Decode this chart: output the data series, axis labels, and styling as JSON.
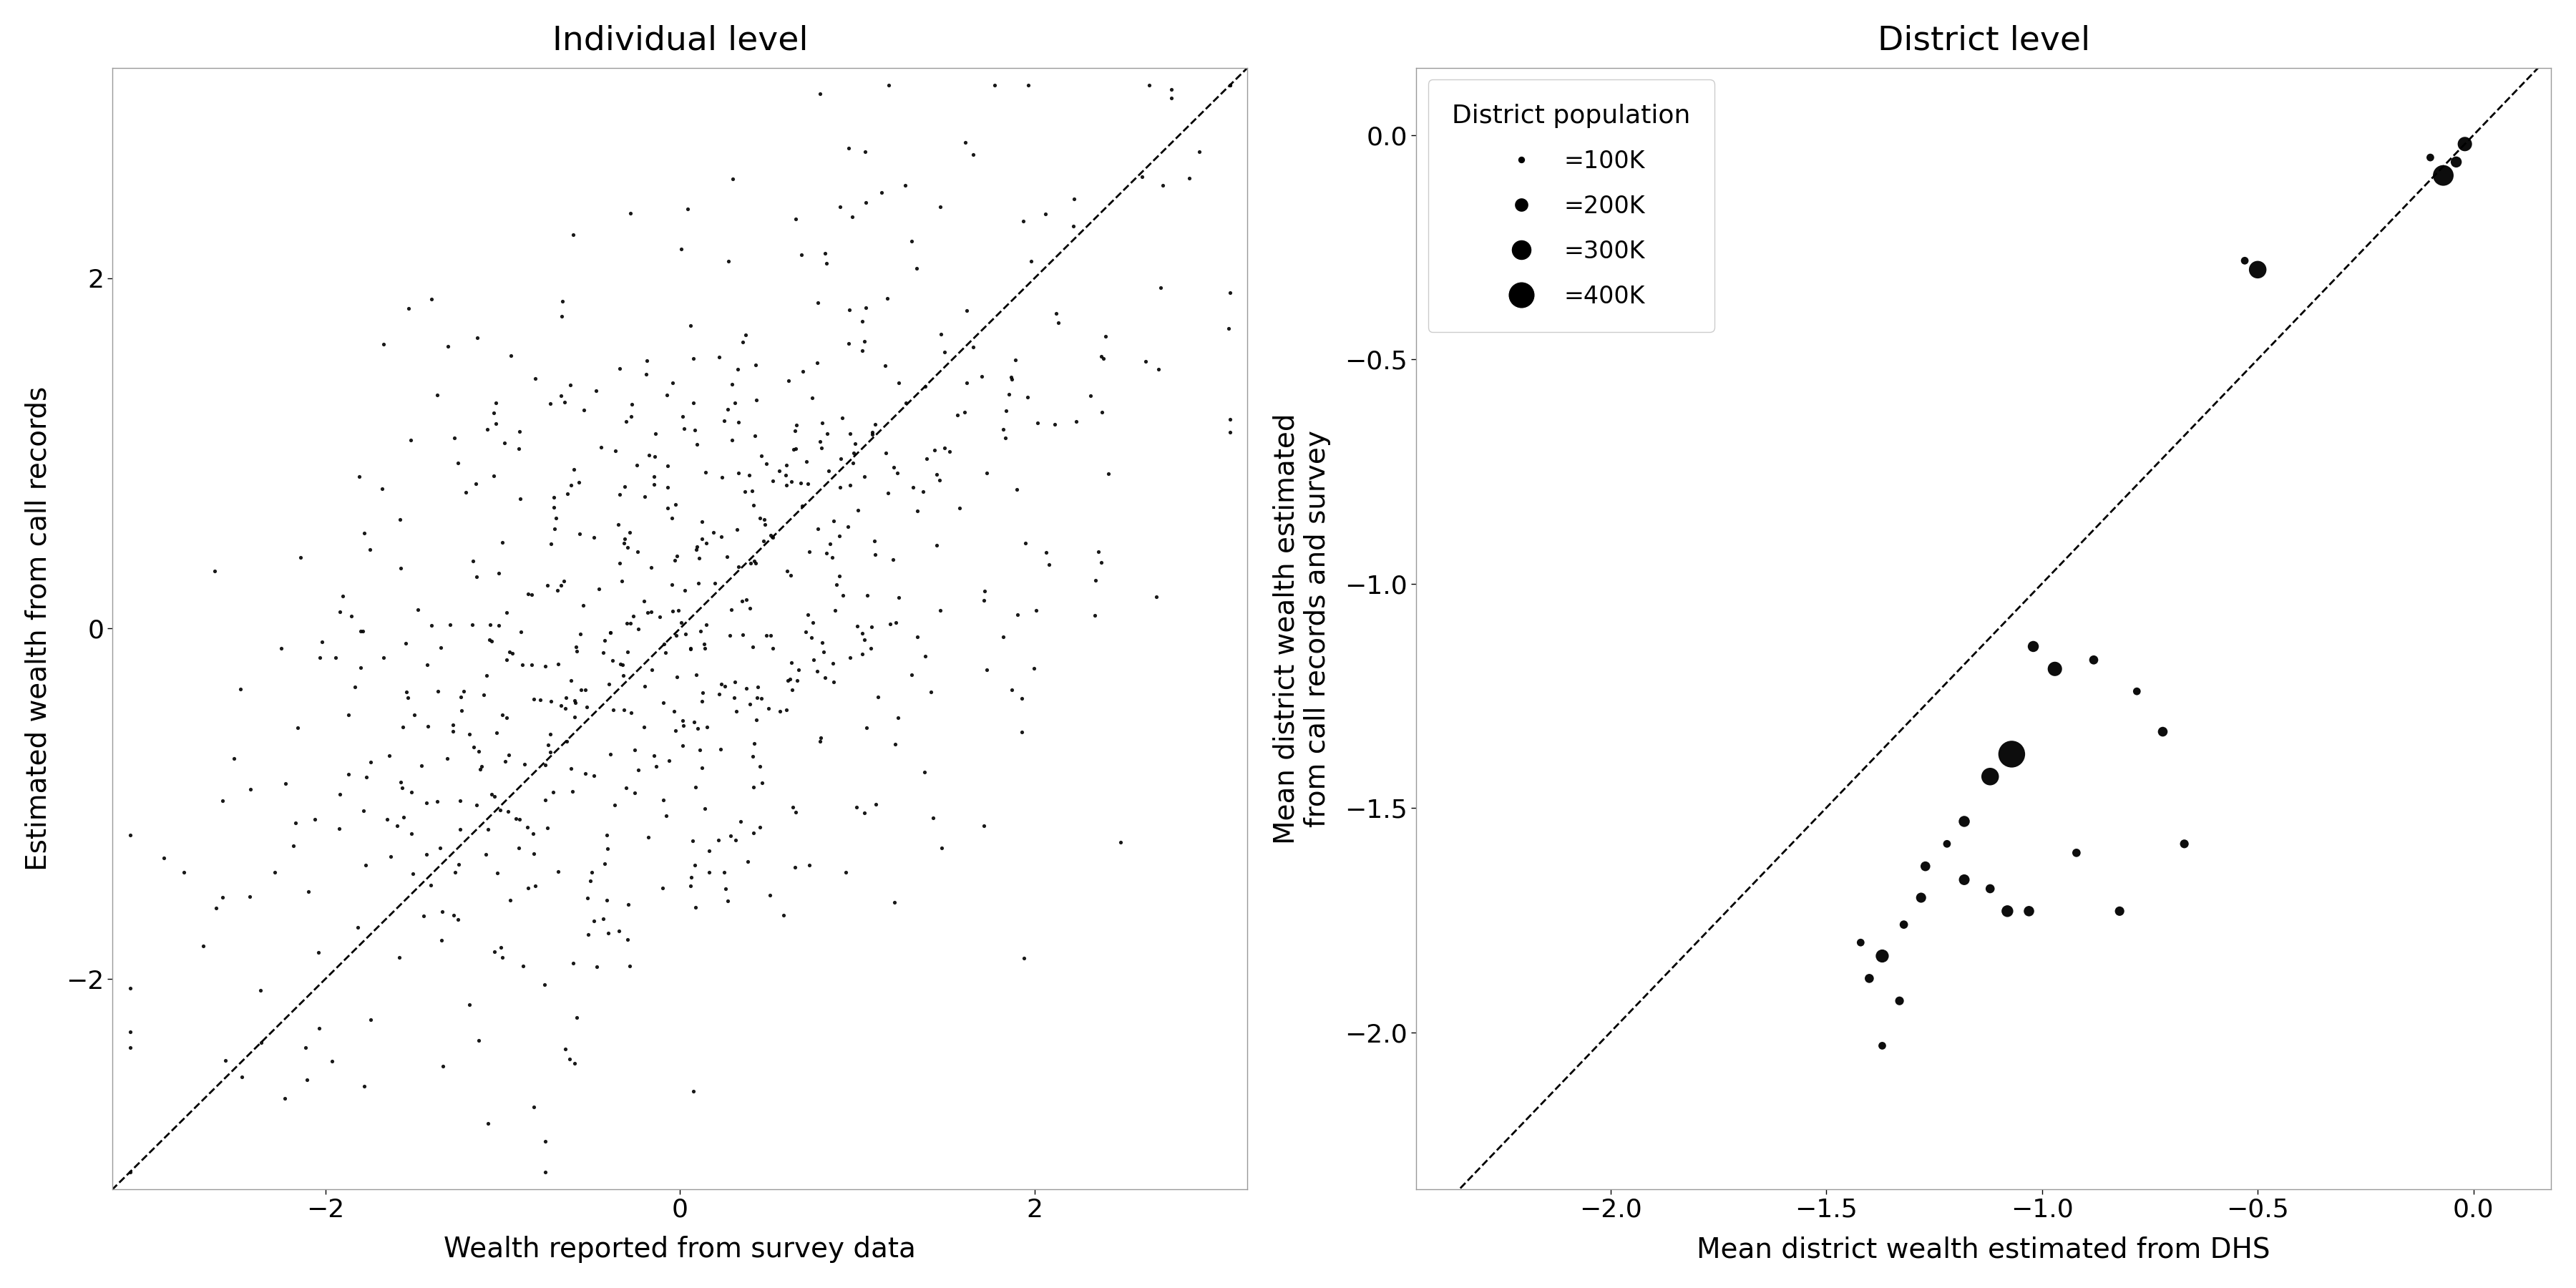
{
  "left_title": "Individual level",
  "left_xlabel": "Wealth reported from survey data",
  "left_ylabel": "Estimated wealth from call records",
  "left_xlim": [
    -3.2,
    3.2
  ],
  "left_ylim": [
    -3.2,
    3.2
  ],
  "left_xticks": [
    -2,
    0,
    2
  ],
  "left_yticks": [
    -2,
    0,
    2
  ],
  "right_title": "District level",
  "right_xlabel": "Mean district wealth estimated from DHS",
  "right_ylabel": "Mean district wealth estimated\nfrom call records and survey",
  "right_xlim": [
    -2.45,
    0.18
  ],
  "right_ylim": [
    -2.35,
    0.15
  ],
  "right_xticks": [
    -2.0,
    -1.5,
    -1.0,
    -0.5,
    0.0
  ],
  "right_yticks": [
    0.0,
    -0.5,
    -1.0,
    -1.5,
    -2.0
  ],
  "dot_color": "#000000",
  "background_color": "#ffffff",
  "legend_title": "District population",
  "legend_sizes_k": [
    100,
    200,
    300,
    400
  ],
  "legend_labels": [
    "=100K",
    "=200K",
    "=300K",
    "=400K"
  ],
  "district_x": [
    -0.02,
    -0.04,
    -0.07,
    -0.1,
    -0.5,
    -0.53,
    -1.02,
    -0.97,
    -0.88,
    -0.78,
    -0.72,
    -1.07,
    -1.12,
    -1.18,
    -1.22,
    -1.27,
    -1.12,
    -1.08,
    -1.03,
    -1.32,
    -1.42,
    -1.37,
    -1.4,
    -1.33,
    -1.28,
    -1.18,
    -1.37,
    -0.92,
    -0.82,
    -0.67
  ],
  "district_y": [
    -0.02,
    -0.06,
    -0.09,
    -0.05,
    -0.3,
    -0.28,
    -1.14,
    -1.19,
    -1.17,
    -1.24,
    -1.33,
    -1.38,
    -1.43,
    -1.53,
    -1.58,
    -1.63,
    -1.68,
    -1.73,
    -1.73,
    -1.76,
    -1.8,
    -1.83,
    -1.88,
    -1.93,
    -1.7,
    -1.66,
    -2.03,
    -1.6,
    -1.73,
    -1.58
  ],
  "district_pop_k": [
    200,
    150,
    300,
    100,
    250,
    100,
    150,
    200,
    120,
    100,
    130,
    400,
    250,
    150,
    100,
    130,
    120,
    160,
    140,
    110,
    100,
    180,
    120,
    115,
    135,
    145,
    100,
    110,
    125,
    115
  ],
  "title_fontsize": 34,
  "label_fontsize": 28,
  "tick_fontsize": 26,
  "legend_title_fontsize": 26,
  "legend_fontsize": 24
}
